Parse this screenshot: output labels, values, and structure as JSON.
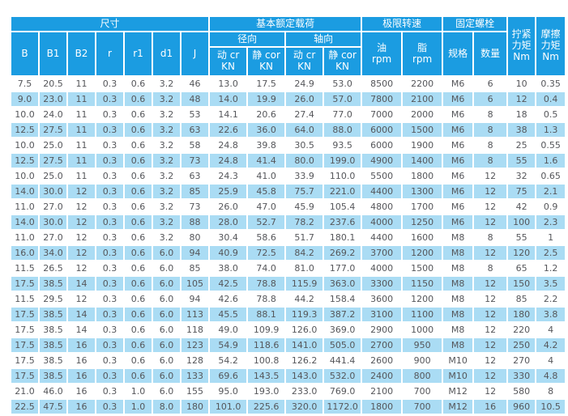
{
  "table": {
    "header": {
      "group_dimensions": "尺寸",
      "group_load": "基本额定载荷",
      "group_radial": "径向",
      "group_axial": "轴向",
      "group_speed": "极限转速",
      "group_bolt": "固定螺栓",
      "col_B": "B",
      "col_B1": "B1",
      "col_B2": "B2",
      "col_r": "r",
      "col_r1": "r1",
      "col_d1": "d1",
      "col_J": "J",
      "col_dyn_radial": "动 cr\nKN",
      "col_stat_radial": "静 cor\nKN",
      "col_dyn_axial": "动 cr\nKN",
      "col_stat_axial": "静 cor\nKN",
      "col_oil": "油\nrpm",
      "col_grease": "脂\nrpm",
      "col_bolt_spec": "规格",
      "col_bolt_qty": "数量",
      "col_tighten_torque": "拧紧\n力矩\nNm",
      "col_friction_torque": "摩擦\n力矩\nNm"
    },
    "rows": [
      [
        "7.5",
        "20.5",
        "11",
        "0.3",
        "0.6",
        "3.2",
        "46",
        "13.0",
        "17.5",
        "24.9",
        "53.0",
        "8500",
        "2200",
        "M6",
        "6",
        "10",
        "0.35"
      ],
      [
        "9.0",
        "23.0",
        "11",
        "0.3",
        "0.6",
        "3.2",
        "48",
        "14.0",
        "19.9",
        "26.0",
        "57.0",
        "7800",
        "2100",
        "M6",
        "6",
        "12",
        "0.4"
      ],
      [
        "10.0",
        "24.0",
        "11",
        "0.3",
        "0.6",
        "3.2",
        "53",
        "14.1",
        "20.6",
        "27.4",
        "77.0",
        "7000",
        "2000",
        "M6",
        "8",
        "18",
        "0.5"
      ],
      [
        "12.5",
        "27.5",
        "11",
        "0.3",
        "0.6",
        "3.2",
        "63",
        "22.6",
        "36.0",
        "64.0",
        "88.0",
        "6000",
        "1500",
        "M6",
        "8",
        "38",
        "1.3"
      ],
      [
        "10.0",
        "25.0",
        "11",
        "0.3",
        "0.6",
        "3.2",
        "58",
        "24.8",
        "39.8",
        "30.5",
        "93.5",
        "6000",
        "1900",
        "M6",
        "8",
        "25",
        "0.55"
      ],
      [
        "12.5",
        "27.5",
        "11",
        "0.3",
        "0.6",
        "3.2",
        "73",
        "24.8",
        "41.4",
        "80.0",
        "199.0",
        "4900",
        "1400",
        "M6",
        "8",
        "55",
        "1.6"
      ],
      [
        "10.0",
        "25.0",
        "11",
        "0.3",
        "0.6",
        "3.2",
        "63",
        "24.3",
        "41.0",
        "33.9",
        "110.0",
        "5500",
        "1800",
        "M6",
        "12",
        "32",
        "0.65"
      ],
      [
        "14.0",
        "30.0",
        "12",
        "0.3",
        "0.6",
        "3.2",
        "85",
        "25.9",
        "45.8",
        "75.7",
        "221.0",
        "4400",
        "1300",
        "M6",
        "12",
        "75",
        "2.1"
      ],
      [
        "11.0",
        "27.0",
        "12",
        "0.3",
        "0.6",
        "3.2",
        "73",
        "26.0",
        "47.0",
        "45.9",
        "105.4",
        "4800",
        "1700",
        "M6",
        "12",
        "42",
        "0.9"
      ],
      [
        "14.0",
        "30.0",
        "12",
        "0.3",
        "0.6",
        "3.2",
        "88",
        "28.0",
        "52.7",
        "78.2",
        "237.6",
        "4000",
        "1250",
        "M6",
        "12",
        "100",
        "2.3"
      ],
      [
        "11.0",
        "27.0",
        "12",
        "0.3",
        "0.6",
        "3.2",
        "80",
        "30.4",
        "58.6",
        "51.7",
        "180.1",
        "4400",
        "1600",
        "M8",
        "8",
        "55",
        "1"
      ],
      [
        "16.0",
        "34.0",
        "12",
        "0.3",
        "0.6",
        "6.0",
        "94",
        "40.9",
        "72.5",
        "84.2",
        "269.2",
        "3700",
        "1200",
        "M8",
        "12",
        "120",
        "2.5"
      ],
      [
        "11.5",
        "26.5",
        "12",
        "0.3",
        "0.6",
        "6.0",
        "85",
        "38.0",
        "74.0",
        "81.0",
        "177.0",
        "4000",
        "1500",
        "M8",
        "8",
        "65",
        "1.2"
      ],
      [
        "17.5",
        "38.5",
        "14",
        "0.3",
        "0.6",
        "6.0",
        "105",
        "42.5",
        "78.8",
        "115.9",
        "363.0",
        "3300",
        "1150",
        "M8",
        "12",
        "150",
        "3.5"
      ],
      [
        "11.5",
        "29.5",
        "12",
        "0.3",
        "0.6",
        "6.0",
        "94",
        "42.6",
        "78.8",
        "44.2",
        "158.4",
        "3600",
        "1200",
        "M8",
        "12",
        "85",
        "2.2"
      ],
      [
        "17.5",
        "38.5",
        "14",
        "0.3",
        "0.6",
        "6.0",
        "113",
        "45.5",
        "88.1",
        "119.3",
        "387.2",
        "3100",
        "1100",
        "M8",
        "12",
        "180",
        "3.8"
      ],
      [
        "17.5",
        "38.5",
        "14",
        "0.3",
        "0.6",
        "6.0",
        "118",
        "49.0",
        "109.9",
        "126.0",
        "369.0",
        "2900",
        "1000",
        "M8",
        "12",
        "220",
        "4"
      ],
      [
        "17.5",
        "38.5",
        "16",
        "0.3",
        "0.6",
        "6.0",
        "123",
        "54.9",
        "118.6",
        "141.0",
        "505.0",
        "2700",
        "950",
        "M8",
        "12",
        "250",
        "4.2"
      ],
      [
        "17.5",
        "38.5",
        "16",
        "0.3",
        "0.6",
        "6.0",
        "128",
        "54.2",
        "100.8",
        "126.2",
        "441.4",
        "2600",
        "900",
        "M10",
        "12",
        "270",
        "4"
      ],
      [
        "17.5",
        "38.5",
        "16",
        "0.3",
        "0.6",
        "6.0",
        "133",
        "69.6",
        "143.5",
        "143.0",
        "532.0",
        "2400",
        "800",
        "M10",
        "12",
        "330",
        "4.8"
      ],
      [
        "21.0",
        "46.0",
        "16",
        "0.3",
        "1.0",
        "6.0",
        "155",
        "95.0",
        "193.0",
        "233.0",
        "769.0",
        "2100",
        "700",
        "M12",
        "12",
        "580",
        "8"
      ],
      [
        "22.5",
        "47.5",
        "16",
        "0.3",
        "1.0",
        "8.0",
        "180",
        "101.0",
        "225.6",
        "320.0",
        "1172.0",
        "1800",
        "700",
        "M12",
        "16",
        "960",
        "10.5"
      ]
    ]
  },
  "colors": {
    "header_bg": "#1b9ce1",
    "stripe_bg": "#aadcf4",
    "header_text": "#ffffff",
    "body_text": "#55565a",
    "gridline": "#ffffff"
  }
}
